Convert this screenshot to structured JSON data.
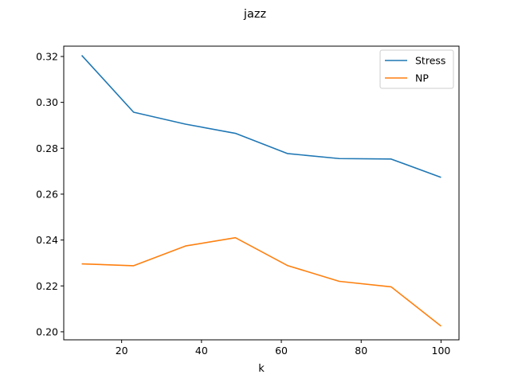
{
  "chart_data": {
    "type": "line",
    "title": "jazz",
    "xlabel": "k",
    "ylabel": "",
    "xlim": [
      5.5,
      104.5
    ],
    "ylim": [
      0.1965,
      0.3245
    ],
    "xticks": [
      20,
      40,
      60,
      80,
      100
    ],
    "yticks": [
      0.2,
      0.22,
      0.24,
      0.26,
      0.28,
      0.3,
      0.32
    ],
    "grid": false,
    "legend_position": "top-right",
    "x": [
      10,
      23,
      36,
      48.5,
      61.5,
      74.5,
      87.5,
      100
    ],
    "series": [
      {
        "name": "Stress",
        "color": "#1f77b4",
        "values": [
          0.3205,
          0.2957,
          0.2905,
          0.2865,
          0.2777,
          0.2755,
          0.2753,
          0.2673
        ]
      },
      {
        "name": "NP",
        "color": "#ff7f0e",
        "values": [
          0.2296,
          0.2288,
          0.2374,
          0.241,
          0.2289,
          0.222,
          0.2196,
          0.2025
        ]
      }
    ]
  }
}
